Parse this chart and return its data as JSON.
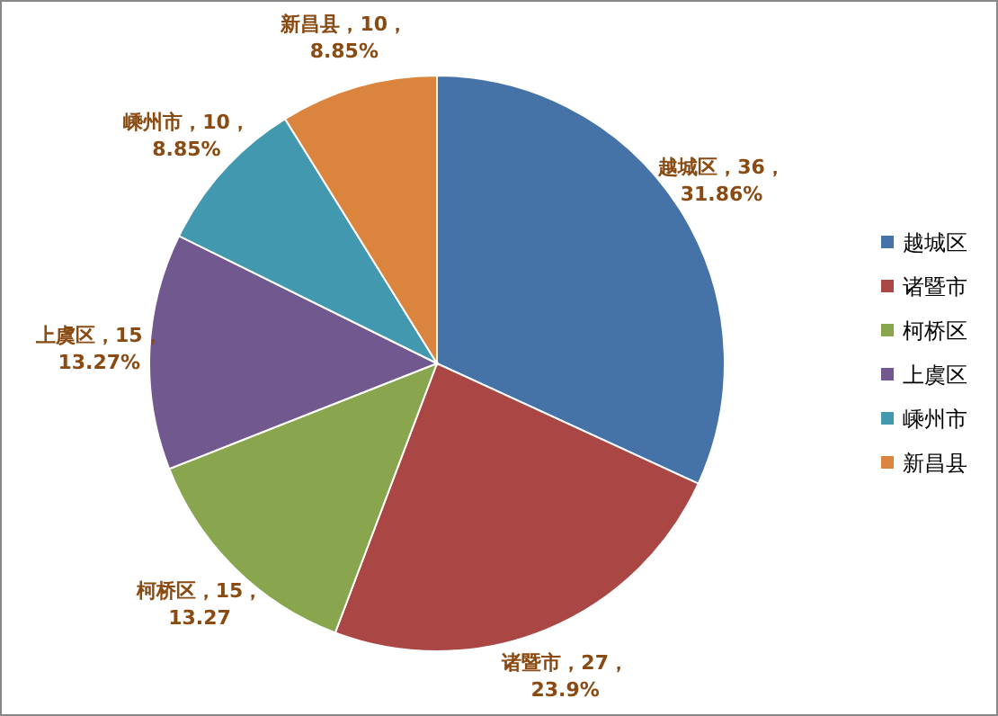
{
  "chart_data": {
    "type": "pie",
    "categories": [
      "越城区",
      "诸暨市",
      "柯桥区",
      "上虞区",
      "嵊州市",
      "新昌县"
    ],
    "values": [
      36,
      27,
      15,
      15,
      10,
      10
    ],
    "colors": [
      "#4572a7",
      "#aa4643",
      "#89a54e",
      "#71588f",
      "#4198af",
      "#db843d"
    ],
    "value_labels": [
      "越城区，36，31.86%",
      "诸暨市，27，23.9%",
      "柯桥区，15，13.27",
      "上虞区，15，13.27%",
      "嵊州市，10，8.85%",
      "新昌县，10，8.85%"
    ],
    "legend": "right"
  }
}
